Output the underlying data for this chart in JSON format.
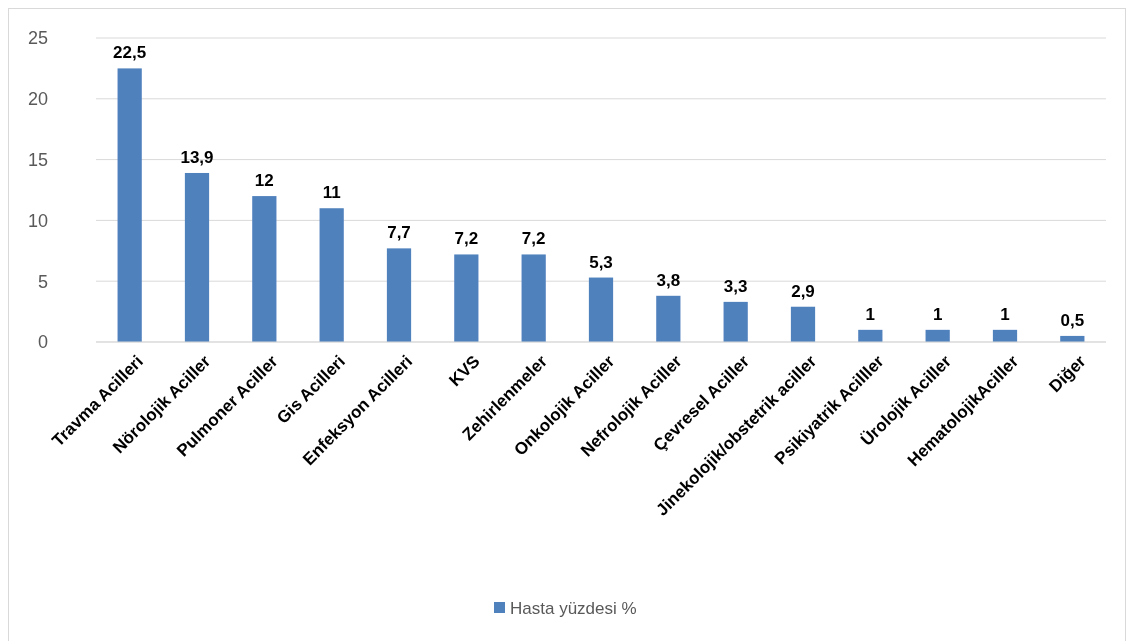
{
  "chart_data": {
    "type": "bar",
    "categories": [
      "Travma Acilleri",
      "Nörolojik Aciller",
      "Pulmoner Aciller",
      "Gis Acilleri",
      "Enfeksyon Acilleri",
      "KVS",
      "Zehirlenmeler",
      "Onkolojik Aciller",
      "Nefrolojik Aciller",
      "Çevresel Aciller",
      "Jinekolojik/obstetrik aciller",
      "Psikiyatrik Acilller",
      "Ürolojik Aciller",
      "HematolojikAciller",
      "Diğer"
    ],
    "series": [
      {
        "name": "Hasta yüzdesi %",
        "color": "#4f81bd",
        "values": [
          22.5,
          13.9,
          12,
          11,
          7.7,
          7.2,
          7.2,
          5.3,
          3.8,
          3.3,
          2.9,
          1,
          1,
          1,
          0.5
        ],
        "value_labels": [
          "22,5",
          "13,9",
          "12",
          "11",
          "7,7",
          "7,2",
          "7,2",
          "5,3",
          "3,8",
          "3,3",
          "2,9",
          "1",
          "1",
          "1",
          "0,5"
        ]
      }
    ],
    "ylim": [
      0,
      25
    ],
    "yticks": [
      0,
      5,
      10,
      15,
      20,
      25
    ],
    "grid": "y",
    "legend": "bottom"
  }
}
